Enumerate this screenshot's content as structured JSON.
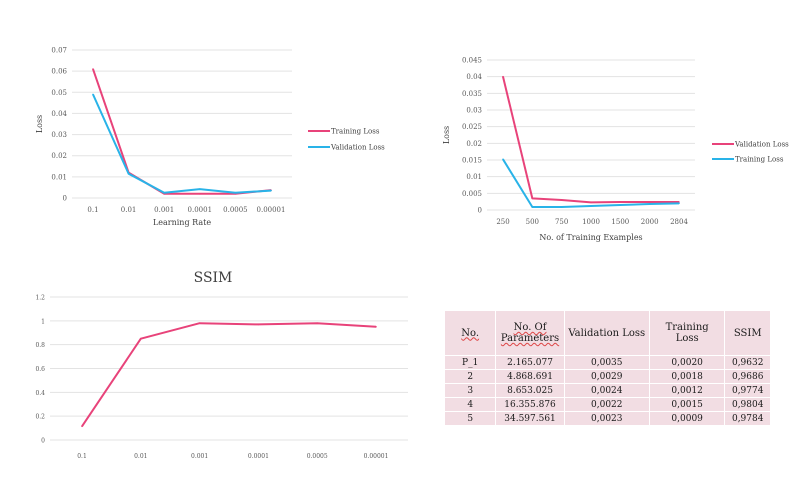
{
  "chart_data": [
    {
      "type": "line",
      "title": "",
      "xlabel": "Learning Rate",
      "ylabel": "Loss",
      "categories": [
        "0.1",
        "0.01",
        "0.001",
        "0.0001",
        "0.0005",
        "0.00001"
      ],
      "yticks": [
        "0",
        "0.01",
        "0.02",
        "0.03",
        "0.04",
        "0.05",
        "0.06",
        "0.07"
      ],
      "ylim": [
        0,
        0.07
      ],
      "grid": true,
      "legend": "right",
      "series": [
        {
          "name": "Training Loss",
          "color": "#e8437a",
          "values": [
            0.061,
            0.012,
            0.002,
            0.002,
            0.002,
            0.0037
          ]
        },
        {
          "name": "Validation Loss",
          "color": "#29b3e8",
          "values": [
            0.049,
            0.0115,
            0.0025,
            0.0042,
            0.0025,
            0.0035
          ]
        }
      ]
    },
    {
      "type": "line",
      "title": "",
      "xlabel": "No. of Training Examples",
      "ylabel": "Loss",
      "categories": [
        "250",
        "500",
        "750",
        "1000",
        "1500",
        "2000",
        "2804"
      ],
      "yticks": [
        "0",
        "0.005",
        "0.01",
        "0.015",
        "0.02",
        "0.025",
        "0.03",
        "0.035",
        "0.04",
        "0.045"
      ],
      "ylim": [
        0,
        0.045
      ],
      "grid": true,
      "legend": "right",
      "series": [
        {
          "name": "Validation Loss",
          "color": "#e8437a",
          "values": [
            0.04,
            0.0035,
            0.003,
            0.0023,
            0.0024,
            0.0024,
            0.0024
          ]
        },
        {
          "name": "Training Loss",
          "color": "#29b3e8",
          "values": [
            0.0152,
            0.0009,
            0.0009,
            0.0012,
            0.0015,
            0.0018,
            0.002
          ]
        }
      ]
    },
    {
      "type": "line",
      "title": "SSIM",
      "xlabel": "",
      "ylabel": "",
      "categories": [
        "0.1",
        "0.01",
        "0.001",
        "0.0001",
        "0.0005",
        "0.00001"
      ],
      "yticks": [
        "0",
        "0.2",
        "0.4",
        "0.6",
        "0.8",
        "1",
        "1.2"
      ],
      "ylim": [
        0,
        1.2
      ],
      "grid": true,
      "legend": "none",
      "series": [
        {
          "name": "",
          "color": "#e8437a",
          "values": [
            0.115,
            0.85,
            0.98,
            0.97,
            0.98,
            0.95
          ]
        }
      ]
    },
    {
      "type": "table",
      "columns": [
        "No.",
        "No. Of Parameters",
        "Validation Loss",
        "Training Loss",
        "SSIM"
      ],
      "rows": [
        [
          "P_1",
          "2.165.077",
          "0,0035",
          "0,0020",
          "0,9632"
        ],
        [
          "2",
          "4.868.691",
          "0,0029",
          "0,0018",
          "0,9686"
        ],
        [
          "3",
          "8.653.025",
          "0,0024",
          "0,0012",
          "0,9774"
        ],
        [
          "4",
          "16.355.876",
          "0,0022",
          "0,0015",
          "0,9804"
        ],
        [
          "5",
          "34.597.561",
          "0,0023",
          "0,0009",
          "0,9784"
        ]
      ]
    }
  ]
}
